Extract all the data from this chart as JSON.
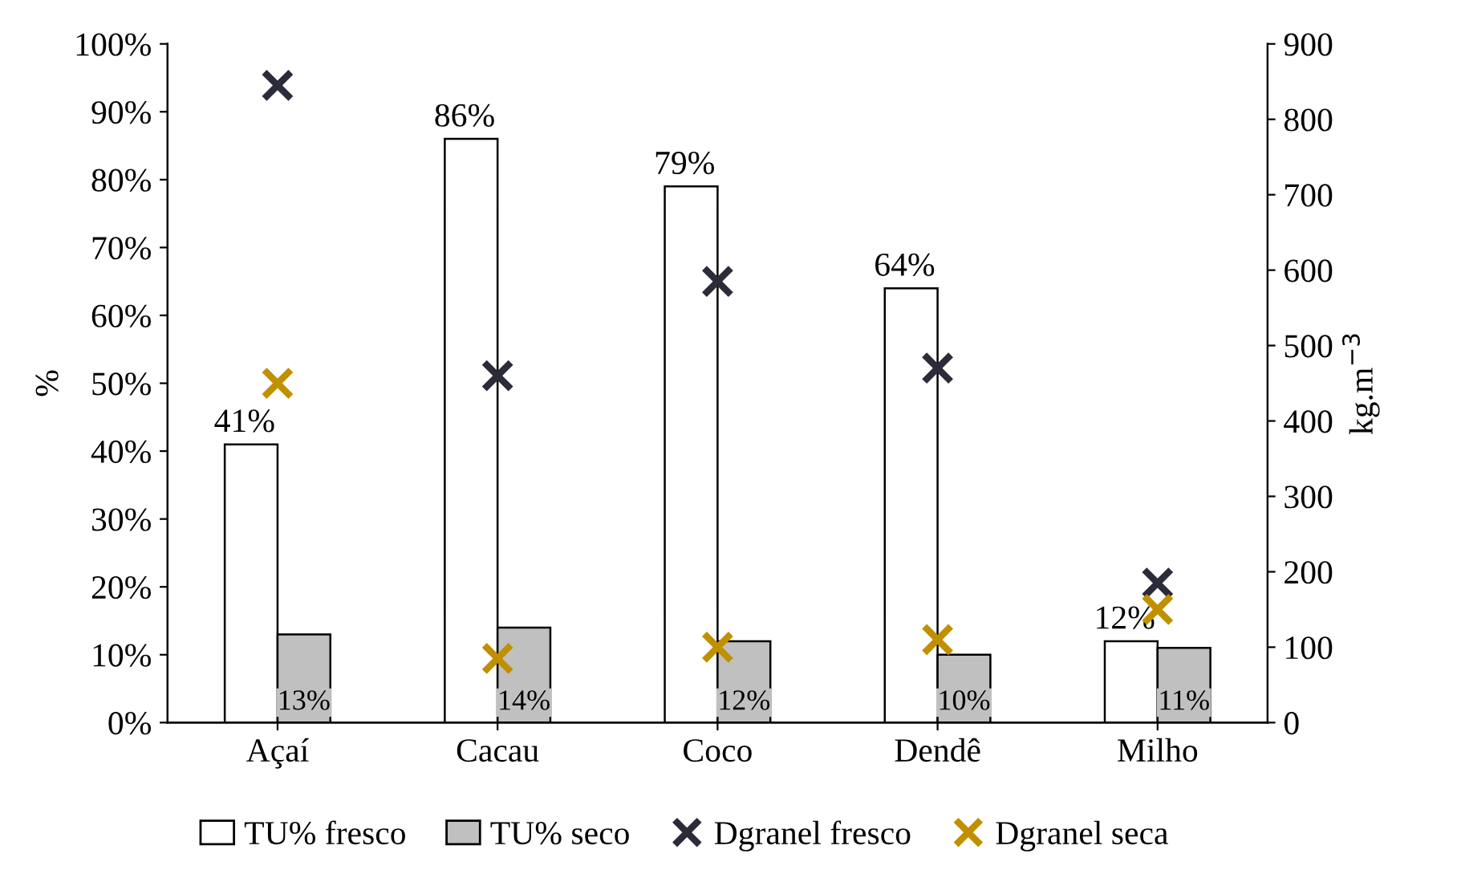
{
  "chart_data": {
    "type": "bar",
    "ylabel": "%",
    "y2label": "kg.m$^{−3}$",
    "categories": [
      "Açaí",
      "Cacau",
      "Coco",
      "Dendê",
      "Milho"
    ],
    "series": [
      {
        "name": "TU% fresco",
        "color": "#ffffff",
        "values": [
          41,
          86,
          79,
          64,
          12
        ],
        "value_labels": [
          "41%",
          "86%",
          "79%",
          "64%",
          "12%"
        ]
      },
      {
        "name": "TU% seco",
        "color": "#c0c0c0",
        "values": [
          13,
          14,
          12,
          10,
          11
        ],
        "value_labels": [
          "13%",
          "14%",
          "12%",
          "10%",
          "11%"
        ]
      },
      {
        "name": "Dgranel fresco",
        "type": "scatter",
        "axis": "y2",
        "marker": "cross",
        "color": "#2b2b3a",
        "x": [
          "Açaí",
          "Cacau",
          "Coco",
          "Dendê",
          "Milho"
        ],
        "values": [
          845,
          460,
          585,
          470,
          185
        ]
      },
      {
        "name": "Dgranel seca",
        "type": "scatter",
        "axis": "y2",
        "marker": "cross",
        "color": "#c09000",
        "x": [
          "Açaí",
          "Cacau",
          "Coco",
          "Dendê",
          "Milho"
        ],
        "values": [
          450,
          85,
          100,
          110,
          150
        ]
      }
    ],
    "ylim": [
      0,
      100
    ],
    "yticks": [
      {
        "value": 0,
        "label": "0%"
      },
      {
        "value": 10,
        "label": "10%"
      },
      {
        "value": 20,
        "label": "20%"
      },
      {
        "value": 30,
        "label": "30%"
      },
      {
        "value": 40,
        "label": "40%"
      },
      {
        "value": 50,
        "label": "50%"
      },
      {
        "value": 60,
        "label": "60%"
      },
      {
        "value": 70,
        "label": "70%"
      },
      {
        "value": 80,
        "label": "80%"
      },
      {
        "value": 90,
        "label": "90%"
      },
      {
        "value": 100,
        "label": "100%"
      }
    ],
    "y2lim": [
      0,
      900
    ],
    "y2ticks": [
      0,
      100,
      200,
      300,
      400,
      500,
      600,
      700,
      800,
      900
    ],
    "grid": false,
    "legend": "bottom"
  }
}
